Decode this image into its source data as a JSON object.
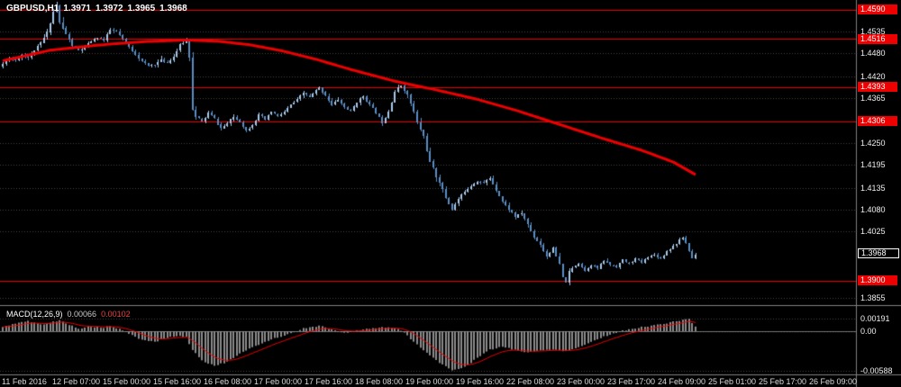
{
  "header": {
    "symbol": "GBPUSD,H1",
    "open": "1.3971",
    "high": "1.3972",
    "low": "1.3965",
    "close": "1.3968"
  },
  "colors": {
    "background": "#000000",
    "bull_candle": "#a8c8ea",
    "bear_candle": "#5b8ec6",
    "trend_line": "#ee0000",
    "level_line": "#ee0000",
    "level_badge": "#ee0000",
    "current_badge_bg": "#000000",
    "histogram": "#8c8c8c",
    "signal_line": "#ee0000",
    "grid": "rgba(255,255,255,0.25)",
    "separator": "#808080",
    "text": "#ffffff"
  },
  "price_axis": {
    "tick_labels": [
      "1.4535",
      "1.4480",
      "1.4420",
      "1.4365",
      "1.4250",
      "1.4195",
      "1.4135",
      "1.4080",
      "1.4025",
      "1.3855"
    ],
    "level_badges": [
      "1.4590",
      "1.4516",
      "1.4393",
      "1.4306",
      "1.3900"
    ],
    "current_price_badge": "1.3968"
  },
  "time_axis": {
    "labels": [
      "11 Feb 2016",
      "12 Feb 07:00",
      "15 Feb 00:00",
      "15 Feb 16:00",
      "16 Feb 08:00",
      "17 Feb 00:00",
      "17 Feb 16:00",
      "18 Feb 08:00",
      "19 Feb 00:00",
      "19 Feb 16:00",
      "22 Feb 08:00",
      "23 Feb 00:00",
      "23 Feb 17:00",
      "24 Feb 09:00",
      "25 Feb 01:00",
      "25 Feb 17:00",
      "26 Feb 09:00"
    ]
  },
  "macd_panel": {
    "name": "MACD(12,26,9)",
    "value_main": "0.00066",
    "value_signal": "0.00102",
    "axis_labels": [
      "0.00191",
      "0.00",
      "-0.00588"
    ]
  },
  "chart_data": [
    {
      "type": "candlestick",
      "title": "GBPUSD H1 candlesticks with thick descending red moving average and red horizontal support/resistance levels",
      "ylim": [
        1.384,
        1.4615
      ],
      "candle_count": 220,
      "levels": [
        1.459,
        1.4516,
        1.4393,
        1.4306,
        1.39
      ],
      "current_price": 1.3968,
      "grid_prices": [
        1.4535,
        1.448,
        1.442,
        1.4365,
        1.425,
        1.4195,
        1.4135,
        1.408,
        1.4025,
        1.3855
      ],
      "close_path": [
        [
          0,
          1.4452
        ],
        [
          2,
          1.4468
        ],
        [
          4,
          1.4462
        ],
        [
          6,
          1.4475
        ],
        [
          8,
          1.447
        ],
        [
          10,
          1.4488
        ],
        [
          12,
          1.4505
        ],
        [
          14,
          1.4532
        ],
        [
          16,
          1.4585
        ],
        [
          17,
          1.4602
        ],
        [
          18,
          1.4558
        ],
        [
          20,
          1.4528
        ],
        [
          22,
          1.4498
        ],
        [
          24,
          1.4486
        ],
        [
          26,
          1.4495
        ],
        [
          28,
          1.451
        ],
        [
          30,
          1.452
        ],
        [
          32,
          1.4512
        ],
        [
          34,
          1.454
        ],
        [
          36,
          1.4534
        ],
        [
          38,
          1.4515
        ],
        [
          40,
          1.4495
        ],
        [
          42,
          1.4478
        ],
        [
          44,
          1.4458
        ],
        [
          46,
          1.4448
        ],
        [
          48,
          1.4452
        ],
        [
          50,
          1.4462
        ],
        [
          52,
          1.4455
        ],
        [
          54,
          1.4472
        ],
        [
          56,
          1.45
        ],
        [
          58,
          1.4512
        ],
        [
          59,
          1.447
        ],
        [
          60,
          1.4338
        ],
        [
          61,
          1.4318
        ],
        [
          63,
          1.4305
        ],
        [
          65,
          1.4328
        ],
        [
          67,
          1.4312
        ],
        [
          69,
          1.4288
        ],
        [
          71,
          1.43
        ],
        [
          73,
          1.4318
        ],
        [
          75,
          1.4305
        ],
        [
          77,
          1.4282
        ],
        [
          79,
          1.4298
        ],
        [
          81,
          1.4322
        ],
        [
          83,
          1.431
        ],
        [
          85,
          1.433
        ],
        [
          87,
          1.4318
        ],
        [
          89,
          1.433
        ],
        [
          91,
          1.4348
        ],
        [
          93,
          1.436
        ],
        [
          95,
          1.4378
        ],
        [
          97,
          1.4368
        ],
        [
          99,
          1.4385
        ],
        [
          100,
          1.4392
        ],
        [
          102,
          1.4372
        ],
        [
          104,
          1.4348
        ],
        [
          106,
          1.4362
        ],
        [
          108,
          1.4342
        ],
        [
          110,
          1.433
        ],
        [
          112,
          1.4356
        ],
        [
          114,
          1.437
        ],
        [
          116,
          1.4348
        ],
        [
          118,
          1.4328
        ],
        [
          120,
          1.4302
        ],
        [
          122,
          1.4332
        ],
        [
          124,
          1.4382
        ],
        [
          126,
          1.4398
        ],
        [
          128,
          1.4372
        ],
        [
          130,
          1.433
        ],
        [
          131,
          1.4302
        ],
        [
          133,
          1.4268
        ],
        [
          134,
          1.4232
        ],
        [
          135,
          1.4202
        ],
        [
          136,
          1.4185
        ],
        [
          137,
          1.4165
        ],
        [
          138,
          1.4152
        ],
        [
          140,
          1.4112
        ],
        [
          142,
          1.4082
        ],
        [
          144,
          1.4108
        ],
        [
          146,
          1.4128
        ],
        [
          148,
          1.4142
        ],
        [
          150,
          1.4155
        ],
        [
          152,
          1.4148
        ],
        [
          154,
          1.4162
        ],
        [
          156,
          1.4132
        ],
        [
          158,
          1.4102
        ],
        [
          160,
          1.4082
        ],
        [
          162,
          1.4062
        ],
        [
          164,
          1.4072
        ],
        [
          166,
          1.4042
        ],
        [
          168,
          1.4012
        ],
        [
          170,
          1.3992
        ],
        [
          172,
          1.3962
        ],
        [
          174,
          1.3982
        ],
        [
          176,
          1.3942
        ],
        [
          177,
          1.3908
        ],
        [
          178,
          1.3896
        ],
        [
          179,
          1.3922
        ],
        [
          180,
          1.3932
        ],
        [
          182,
          1.3946
        ],
        [
          184,
          1.3926
        ],
        [
          186,
          1.3942
        ],
        [
          188,
          1.393
        ],
        [
          190,
          1.3952
        ],
        [
          192,
          1.394
        ],
        [
          194,
          1.3936
        ],
        [
          196,
          1.3952
        ],
        [
          198,
          1.3942
        ],
        [
          200,
          1.3956
        ],
        [
          202,
          1.3946
        ],
        [
          204,
          1.3962
        ],
        [
          206,
          1.3966
        ],
        [
          208,
          1.3956
        ],
        [
          210,
          1.3976
        ],
        [
          212,
          1.3988
        ],
        [
          214,
          1.4002
        ],
        [
          215,
          1.401
        ],
        [
          216,
          1.3996
        ],
        [
          217,
          1.3976
        ],
        [
          218,
          1.3958
        ],
        [
          219,
          1.3968
        ]
      ],
      "volatility": [
        [
          0,
          0.0009
        ],
        [
          14,
          0.0013
        ],
        [
          18,
          0.0016
        ],
        [
          24,
          0.0009
        ],
        [
          40,
          0.0008
        ],
        [
          56,
          0.0011
        ],
        [
          59,
          0.0013
        ],
        [
          60,
          0.002
        ],
        [
          62,
          0.0008
        ],
        [
          88,
          0.0007
        ],
        [
          100,
          0.0008
        ],
        [
          126,
          0.0009
        ],
        [
          130,
          0.0013
        ],
        [
          137,
          0.0016
        ],
        [
          144,
          0.001
        ],
        [
          154,
          0.0008
        ],
        [
          168,
          0.0009
        ],
        [
          177,
          0.0014
        ],
        [
          181,
          0.0006
        ],
        [
          205,
          0.0006
        ],
        [
          215,
          0.0008
        ],
        [
          219,
          0.0006
        ]
      ],
      "ma_line": [
        [
          0,
          1.446
        ],
        [
          15,
          1.4487
        ],
        [
          30,
          1.45
        ],
        [
          45,
          1.4509
        ],
        [
          58,
          1.4513
        ],
        [
          68,
          1.451
        ],
        [
          78,
          1.4501
        ],
        [
          88,
          1.4486
        ],
        [
          99,
          1.4464
        ],
        [
          110,
          1.4438
        ],
        [
          124,
          1.4408
        ],
        [
          137,
          1.4386
        ],
        [
          150,
          1.4362
        ],
        [
          163,
          1.4332
        ],
        [
          176,
          1.4298
        ],
        [
          189,
          1.4264
        ],
        [
          202,
          1.4232
        ],
        [
          212,
          1.4202
        ],
        [
          219,
          1.417
        ]
      ]
    },
    {
      "type": "bar",
      "title": "MACD(12,26,9) gray histogram with red signal line",
      "ylim": [
        -0.0065,
        0.0024
      ],
      "bar_count": 220,
      "axis_levels": [
        0.00191,
        0,
        -0.00588
      ],
      "current_main": 0.00066,
      "current_signal": 0.00102,
      "values_path": [
        [
          0,
          0.0006
        ],
        [
          4,
          0.0012
        ],
        [
          8,
          0.0015
        ],
        [
          12,
          0.001
        ],
        [
          15,
          0.0013
        ],
        [
          18,
          0.0016
        ],
        [
          21,
          0.001
        ],
        [
          24,
          0.0004
        ],
        [
          28,
          0.0007
        ],
        [
          32,
          0.0005
        ],
        [
          34,
          0.0008
        ],
        [
          37,
          0.0003
        ],
        [
          40,
          -0.0004
        ],
        [
          44,
          -0.0013
        ],
        [
          48,
          -0.0016
        ],
        [
          52,
          -0.001
        ],
        [
          55,
          -0.0007
        ],
        [
          58,
          -0.0009
        ],
        [
          60,
          -0.0028
        ],
        [
          63,
          -0.0044
        ],
        [
          67,
          -0.0052
        ],
        [
          71,
          -0.0046
        ],
        [
          75,
          -0.0034
        ],
        [
          80,
          -0.0022
        ],
        [
          85,
          -0.0012
        ],
        [
          90,
          -0.0005
        ],
        [
          95,
          0.0004
        ],
        [
          100,
          0.0008
        ],
        [
          104,
          0.0003
        ],
        [
          108,
          -0.0003
        ],
        [
          112,
          0.0001
        ],
        [
          116,
          0.0004
        ],
        [
          120,
          0.0006
        ],
        [
          124,
          0.0005
        ],
        [
          127,
          -0.0002
        ],
        [
          130,
          -0.0016
        ],
        [
          134,
          -0.0032
        ],
        [
          138,
          -0.0048
        ],
        [
          142,
          -0.0058
        ],
        [
          146,
          -0.0054
        ],
        [
          150,
          -0.004
        ],
        [
          154,
          -0.0028
        ],
        [
          158,
          -0.0023
        ],
        [
          162,
          -0.0028
        ],
        [
          166,
          -0.0032
        ],
        [
          170,
          -0.0029
        ],
        [
          174,
          -0.0027
        ],
        [
          178,
          -0.003
        ],
        [
          182,
          -0.0024
        ],
        [
          186,
          -0.0016
        ],
        [
          190,
          -0.0008
        ],
        [
          194,
          -0.0002
        ],
        [
          198,
          0.0003
        ],
        [
          202,
          0.0006
        ],
        [
          206,
          0.0009
        ],
        [
          210,
          0.0012
        ],
        [
          214,
          0.0016
        ],
        [
          217,
          0.0019
        ],
        [
          219,
          0.0007
        ]
      ]
    }
  ]
}
